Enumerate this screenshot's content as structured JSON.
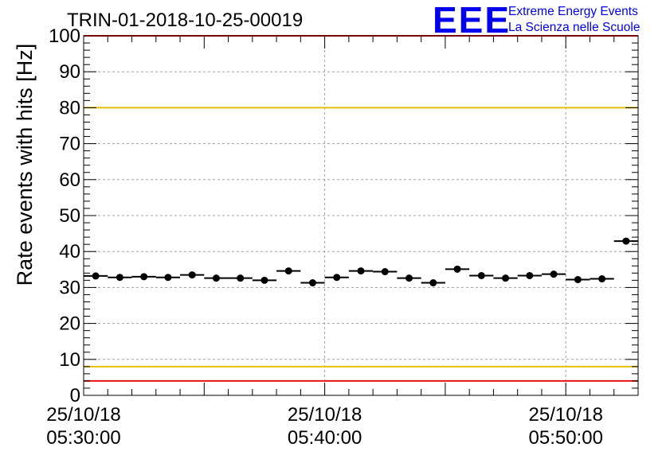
{
  "chart_data": {
    "type": "scatter",
    "title": "TRIN-01-2018-10-25-00019",
    "xlabel": "",
    "ylabel": "Rate events with hits [Hz]",
    "ylim": [
      0,
      100
    ],
    "y_ticks": [
      0,
      10,
      20,
      30,
      40,
      50,
      60,
      70,
      80,
      90,
      100
    ],
    "x_range_minutes": [
      0,
      23
    ],
    "x_tick_labels": [
      {
        "minute": 0,
        "date": "25/10/18",
        "time": "05:30:00"
      },
      {
        "minute": 10,
        "date": "25/10/18",
        "time": "05:40:00"
      },
      {
        "minute": 20,
        "date": "25/10/18",
        "time": "05:50:00"
      }
    ],
    "grid": true,
    "points": [
      {
        "minute": 0.5,
        "value": 33.2
      },
      {
        "minute": 1.5,
        "value": 32.8
      },
      {
        "minute": 2.5,
        "value": 33.0
      },
      {
        "minute": 3.5,
        "value": 32.8
      },
      {
        "minute": 4.5,
        "value": 33.5
      },
      {
        "minute": 5.5,
        "value": 32.6
      },
      {
        "minute": 6.5,
        "value": 32.6
      },
      {
        "minute": 7.5,
        "value": 32.0
      },
      {
        "minute": 8.5,
        "value": 34.6
      },
      {
        "minute": 9.5,
        "value": 31.3
      },
      {
        "minute": 10.5,
        "value": 32.8
      },
      {
        "minute": 11.5,
        "value": 34.6
      },
      {
        "minute": 12.5,
        "value": 34.4
      },
      {
        "minute": 13.5,
        "value": 32.6
      },
      {
        "minute": 14.5,
        "value": 31.3
      },
      {
        "minute": 15.5,
        "value": 35.1
      },
      {
        "minute": 16.5,
        "value": 33.3
      },
      {
        "minute": 17.5,
        "value": 32.6
      },
      {
        "minute": 18.5,
        "value": 33.3
      },
      {
        "minute": 19.5,
        "value": 33.7
      },
      {
        "minute": 20.5,
        "value": 32.2
      },
      {
        "minute": 21.5,
        "value": 32.4
      },
      {
        "minute": 22.5,
        "value": 42.9
      }
    ],
    "reference_lines": [
      {
        "value": 100,
        "color": "#ee1111"
      },
      {
        "value": 80,
        "color": "#e8c000"
      },
      {
        "value": 8,
        "color": "#e8c000"
      },
      {
        "value": 4,
        "color": "#ee1111"
      }
    ]
  },
  "logo": {
    "letters": "EEE",
    "line1": "Extreme Energy Events",
    "line2": "La Scienza nelle Scuole",
    "color": "#0000ee"
  }
}
